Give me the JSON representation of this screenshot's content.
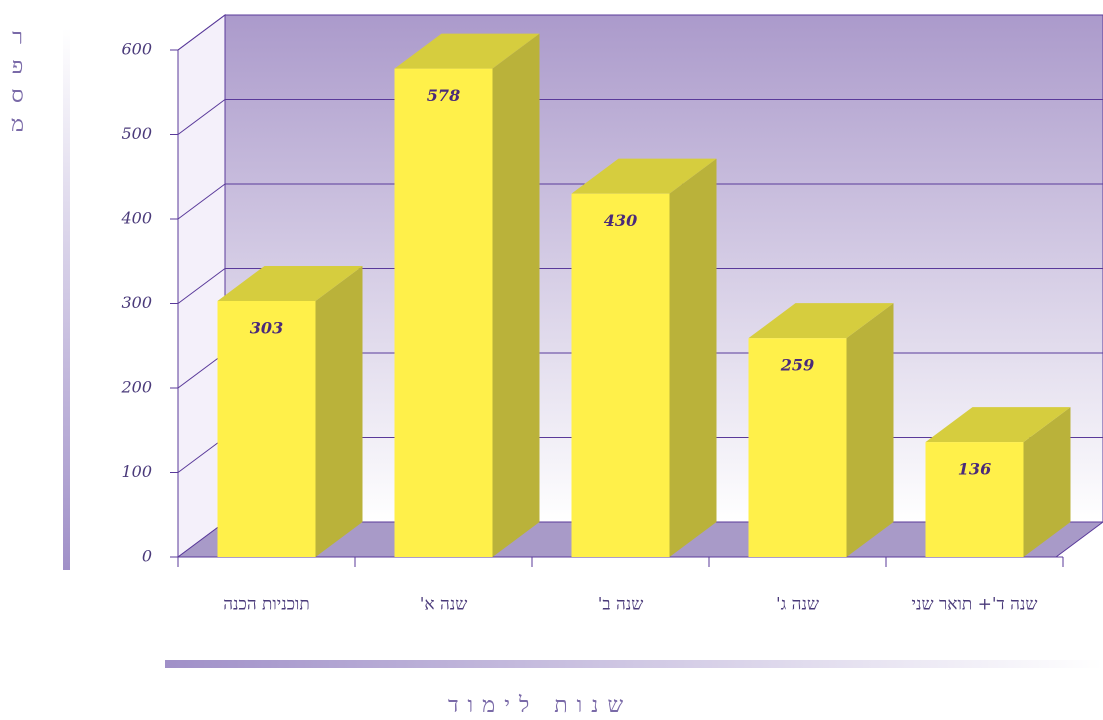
{
  "chart_data": {
    "type": "bar3d",
    "x_label": "שנות לימוד",
    "y_label": "מספר הסטודנטים",
    "categories": [
      "תוכניות הכנה",
      "שנה א'",
      "שנה ב'",
      "שנה ג'",
      "שנה ד'+ תואר שני"
    ],
    "values": [
      303,
      578,
      430,
      259,
      136
    ],
    "color": "#fff04a",
    "ylim": [
      0,
      600
    ],
    "yticks": [
      0,
      100,
      200,
      300,
      400,
      500,
      600
    ],
    "grid": true
  }
}
